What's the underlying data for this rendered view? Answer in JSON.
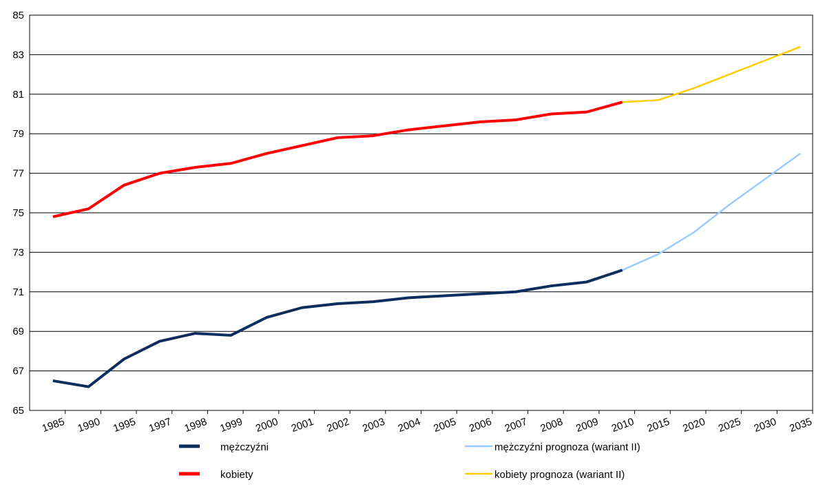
{
  "chart_data": {
    "type": "line",
    "categories": [
      "1985",
      "1990",
      "1995",
      "1997",
      "1998",
      "1999",
      "2000",
      "2001",
      "2002",
      "2003",
      "2004",
      "2005",
      "2006",
      "2007",
      "2008",
      "2009",
      "2010",
      "2015",
      "2020",
      "2025",
      "2030",
      "2035"
    ],
    "series": [
      {
        "name": "mężczyźni",
        "color": "#0d2d5c",
        "values": [
          66.5,
          66.2,
          67.6,
          68.5,
          68.9,
          68.8,
          69.7,
          70.2,
          70.4,
          70.5,
          70.7,
          70.8,
          70.9,
          71.0,
          71.3,
          71.5,
          72.1,
          null,
          null,
          null,
          null,
          null
        ]
      },
      {
        "name": "kobiety",
        "color": "#ff0000",
        "values": [
          74.8,
          75.2,
          76.4,
          77.0,
          77.3,
          77.5,
          78.0,
          78.4,
          78.8,
          78.9,
          79.2,
          79.4,
          79.6,
          79.7,
          80.0,
          80.1,
          80.6,
          null,
          null,
          null,
          null,
          null
        ]
      },
      {
        "name": "mężczyźni prognoza (wariant II)",
        "color": "#99ccff",
        "values": [
          null,
          null,
          null,
          null,
          null,
          null,
          null,
          null,
          null,
          null,
          null,
          null,
          null,
          null,
          null,
          null,
          72.1,
          72.9,
          74.0,
          75.4,
          76.7,
          78.0
        ]
      },
      {
        "name": "kobiety prognoza (wariant II)",
        "color": "#ffcc00",
        "values": [
          null,
          null,
          null,
          null,
          null,
          null,
          null,
          null,
          null,
          null,
          null,
          null,
          null,
          null,
          null,
          null,
          80.6,
          80.7,
          81.3,
          82.0,
          82.7,
          83.4
        ]
      }
    ],
    "ylim": [
      65,
      85
    ],
    "yticks": [
      65,
      67,
      69,
      71,
      73,
      75,
      77,
      79,
      81,
      83,
      85
    ],
    "grid": true
  }
}
